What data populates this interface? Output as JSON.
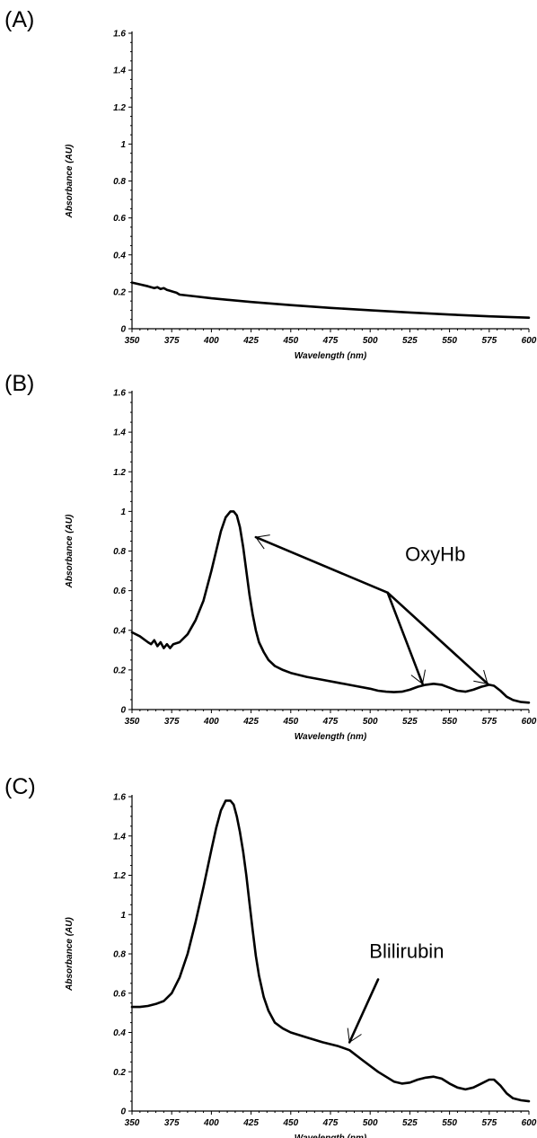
{
  "chart_data": [
    {
      "type": "line",
      "panel_label": "(A)",
      "xlabel": "Wavelength (nm)",
      "ylabel": "Absorbance (AU)",
      "xlim": [
        350,
        600
      ],
      "ylim": [
        0,
        1.6
      ],
      "x_ticks": [
        350,
        375,
        400,
        425,
        450,
        475,
        500,
        525,
        550,
        575,
        600
      ],
      "y_ticks": [
        0,
        0.2,
        0.4,
        0.6,
        0.8,
        1,
        1.2,
        1.4,
        1.6
      ],
      "grid": false,
      "series": [
        {
          "x": [
            350,
            355,
            360,
            362,
            364,
            366,
            368,
            370,
            372,
            374,
            376,
            378,
            380,
            390,
            400,
            425,
            450,
            475,
            500,
            525,
            550,
            575,
            600
          ],
          "values": [
            0.25,
            0.24,
            0.23,
            0.225,
            0.22,
            0.225,
            0.215,
            0.22,
            0.21,
            0.205,
            0.2,
            0.195,
            0.185,
            0.175,
            0.165,
            0.145,
            0.128,
            0.113,
            0.1,
            0.088,
            0.077,
            0.067,
            0.06
          ]
        }
      ],
      "annotations": []
    },
    {
      "type": "line",
      "panel_label": "(B)",
      "xlabel": "Wavelength (nm)",
      "ylabel": "Absorbance (AU)",
      "xlim": [
        350,
        600
      ],
      "ylim": [
        0,
        1.6
      ],
      "x_ticks": [
        350,
        375,
        400,
        425,
        450,
        475,
        500,
        525,
        550,
        575,
        600
      ],
      "y_ticks": [
        0,
        0.2,
        0.4,
        0.6,
        0.8,
        1,
        1.2,
        1.4,
        1.6
      ],
      "grid": false,
      "series": [
        {
          "x": [
            350,
            355,
            360,
            362,
            364,
            366,
            368,
            370,
            372,
            374,
            376,
            380,
            385,
            390,
            395,
            400,
            403,
            406,
            409,
            412,
            414,
            416,
            418,
            420,
            422,
            424,
            426,
            428,
            430,
            433,
            436,
            440,
            445,
            450,
            460,
            470,
            480,
            490,
            500,
            505,
            510,
            515,
            520,
            525,
            530,
            535,
            540,
            545,
            550,
            555,
            560,
            565,
            570,
            575,
            578,
            582,
            586,
            590,
            595,
            600
          ],
          "values": [
            0.39,
            0.37,
            0.34,
            0.33,
            0.35,
            0.32,
            0.34,
            0.31,
            0.33,
            0.31,
            0.33,
            0.34,
            0.38,
            0.45,
            0.55,
            0.7,
            0.8,
            0.9,
            0.97,
            1.0,
            1.0,
            0.98,
            0.92,
            0.82,
            0.7,
            0.58,
            0.48,
            0.4,
            0.34,
            0.29,
            0.25,
            0.22,
            0.2,
            0.185,
            0.165,
            0.15,
            0.135,
            0.12,
            0.105,
            0.095,
            0.09,
            0.088,
            0.09,
            0.1,
            0.115,
            0.125,
            0.13,
            0.125,
            0.11,
            0.095,
            0.09,
            0.1,
            0.115,
            0.125,
            0.12,
            0.095,
            0.065,
            0.048,
            0.038,
            0.035
          ]
        }
      ],
      "annotations": [
        {
          "text": "OxyHb",
          "at": [
            541,
            0.75
          ],
          "hub": [
            511,
            0.59
          ],
          "targets": [
            [
              428,
              0.87
            ],
            [
              533,
              0.13
            ],
            [
              574,
              0.13
            ]
          ]
        }
      ]
    },
    {
      "type": "line",
      "panel_label": "(C)",
      "xlabel": "Wavelength (nm)",
      "ylabel": "Absorbance (AU)",
      "xlim": [
        350,
        600
      ],
      "ylim": [
        0,
        1.6
      ],
      "x_ticks": [
        350,
        375,
        400,
        425,
        450,
        475,
        500,
        525,
        550,
        575,
        600
      ],
      "y_ticks": [
        0,
        0.2,
        0.4,
        0.6,
        0.8,
        1,
        1.2,
        1.4,
        1.6
      ],
      "grid": false,
      "series": [
        {
          "x": [
            350,
            355,
            360,
            365,
            370,
            375,
            380,
            385,
            390,
            395,
            400,
            403,
            406,
            409,
            412,
            414,
            416,
            418,
            420,
            422,
            424,
            426,
            428,
            430,
            433,
            436,
            440,
            445,
            450,
            460,
            470,
            480,
            487,
            495,
            505,
            515,
            520,
            525,
            530,
            535,
            540,
            545,
            550,
            555,
            560,
            565,
            570,
            575,
            578,
            582,
            586,
            590,
            595,
            600
          ],
          "values": [
            0.53,
            0.53,
            0.535,
            0.545,
            0.56,
            0.6,
            0.68,
            0.8,
            0.96,
            1.14,
            1.33,
            1.44,
            1.53,
            1.58,
            1.58,
            1.56,
            1.5,
            1.42,
            1.32,
            1.2,
            1.06,
            0.92,
            0.79,
            0.69,
            0.58,
            0.51,
            0.45,
            0.42,
            0.4,
            0.375,
            0.35,
            0.33,
            0.31,
            0.26,
            0.2,
            0.15,
            0.14,
            0.145,
            0.16,
            0.17,
            0.175,
            0.165,
            0.14,
            0.12,
            0.11,
            0.12,
            0.14,
            0.16,
            0.16,
            0.13,
            0.09,
            0.065,
            0.055,
            0.05
          ]
        }
      ],
      "annotations": [
        {
          "text": "Blilirubin",
          "at": [
            523,
            0.78
          ],
          "hub": [
            505,
            0.67
          ],
          "targets": [
            [
              487,
              0.35
            ]
          ]
        }
      ]
    }
  ]
}
